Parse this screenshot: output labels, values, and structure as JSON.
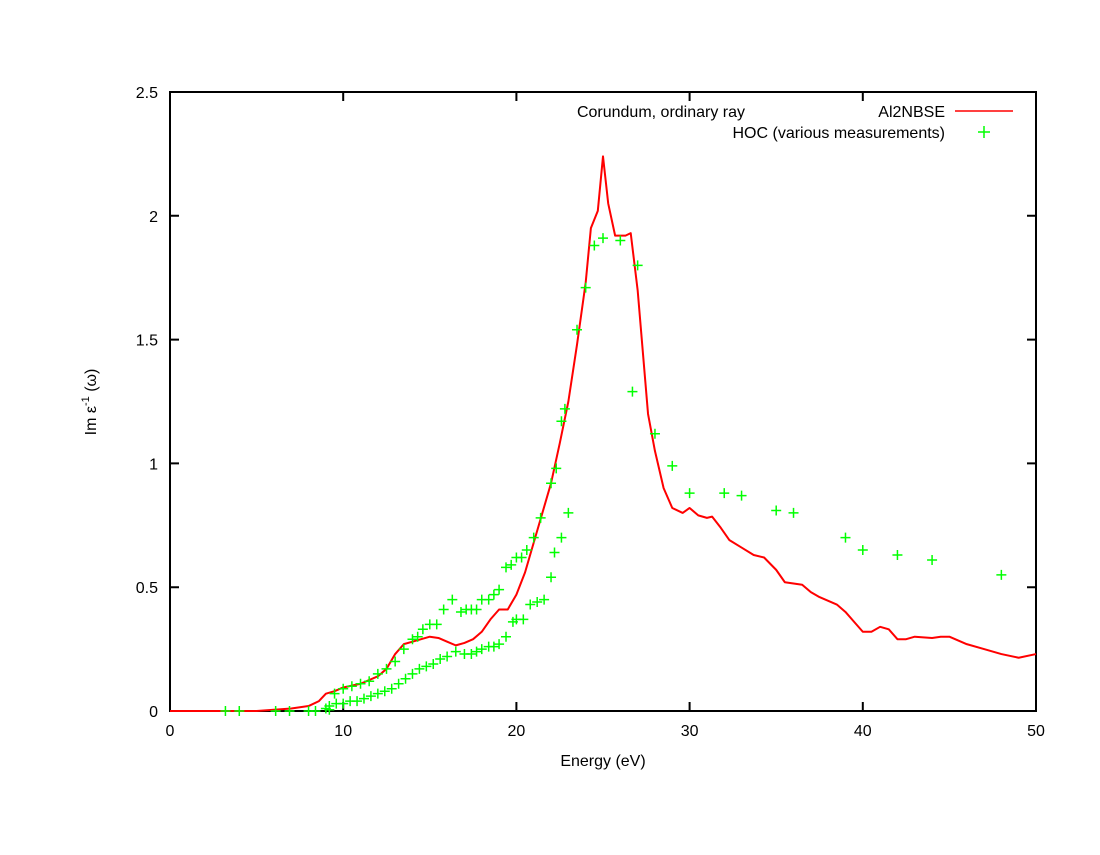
{
  "chart_data": {
    "type": "line",
    "title": "Corundum, ordinary ray",
    "xlabel": "Energy (eV)",
    "ylabel": {
      "base": "Im ε",
      "sup": "-1",
      "suffix": " (ω)"
    },
    "xlim": [
      0,
      50
    ],
    "ylim": [
      0,
      2.5
    ],
    "xticks": [
      0,
      10,
      20,
      30,
      40,
      50
    ],
    "yticks": [
      0,
      0.5,
      1,
      1.5,
      2,
      2.5
    ],
    "ytick_labels": [
      "0",
      "0.5",
      "1",
      "1.5",
      "2",
      "2.5"
    ],
    "grid": false,
    "legend_position": "top-right",
    "series": [
      {
        "name": "Al2NBSE",
        "style": "line",
        "color": "#ff0000",
        "x": [
          0,
          5,
          6,
          7,
          8,
          8.6,
          9,
          9.5,
          10,
          11,
          12,
          12.5,
          13,
          13.5,
          14,
          14.5,
          15,
          15.5,
          16,
          16.5,
          17,
          17.5,
          18,
          18.5,
          19,
          19.5,
          20,
          20.5,
          21,
          21.5,
          22,
          22.5,
          23,
          23.5,
          24,
          24.3,
          24.7,
          25,
          25.3,
          25.7,
          26.3,
          26.6,
          27,
          27.3,
          27.6,
          28,
          28.5,
          29,
          29.6,
          30,
          30.5,
          31,
          31.3,
          31.8,
          32.3,
          33,
          33.7,
          34.3,
          35,
          35.5,
          36,
          36.5,
          37,
          37.5,
          38.5,
          39,
          39.5,
          40,
          40.5,
          41,
          41.5,
          42,
          42.5,
          43,
          44,
          44.5,
          45,
          46,
          47,
          48,
          49,
          50
        ],
        "y": [
          0,
          0,
          0.005,
          0.01,
          0.02,
          0.04,
          0.07,
          0.08,
          0.095,
          0.11,
          0.14,
          0.17,
          0.23,
          0.27,
          0.28,
          0.29,
          0.3,
          0.295,
          0.28,
          0.265,
          0.275,
          0.29,
          0.32,
          0.37,
          0.41,
          0.41,
          0.47,
          0.56,
          0.68,
          0.8,
          0.92,
          1.08,
          1.25,
          1.48,
          1.73,
          1.95,
          2.02,
          2.24,
          2.05,
          1.92,
          1.92,
          1.93,
          1.7,
          1.45,
          1.2,
          1.05,
          0.9,
          0.82,
          0.8,
          0.82,
          0.79,
          0.78,
          0.785,
          0.74,
          0.69,
          0.66,
          0.63,
          0.62,
          0.57,
          0.52,
          0.515,
          0.51,
          0.48,
          0.46,
          0.43,
          0.4,
          0.36,
          0.32,
          0.32,
          0.34,
          0.33,
          0.29,
          0.29,
          0.3,
          0.295,
          0.3,
          0.3,
          0.27,
          0.25,
          0.23,
          0.215,
          0.23
        ]
      },
      {
        "name": "HOC (various measurements)",
        "style": "points",
        "color": "#00ff00",
        "x": [
          3.2,
          4,
          6.1,
          6.9,
          8,
          8.4,
          9,
          9.2,
          9.5,
          10,
          10.5,
          11,
          11.5,
          12,
          12.5,
          13,
          13.5,
          14,
          14.3,
          14.6,
          15,
          15.4,
          15.8,
          16.3,
          16.8,
          17.1,
          17.4,
          17.7,
          18,
          18.4,
          18.7,
          19,
          19.4,
          19.7,
          20,
          20.3,
          20.6,
          21,
          21.4,
          22,
          22.3,
          22.6,
          22.8,
          23.5,
          24,
          24.5,
          25,
          26,
          27,
          26.7,
          28,
          29,
          30,
          32,
          33,
          35,
          36,
          39,
          40,
          42,
          44,
          48,
          9.2,
          9.6,
          10,
          10.4,
          10.8,
          11.2,
          11.6,
          12,
          12.4,
          12.8,
          13.2,
          13.6,
          14,
          14.4,
          14.8,
          15.2,
          15.6,
          16,
          16.5,
          17,
          17.4,
          17.7,
          18,
          18.4,
          18.7,
          19,
          19.4,
          19.8,
          20,
          20.4,
          20.8,
          21.2,
          21.6,
          22,
          22.2,
          22.6,
          23
        ],
        "y": [
          0,
          0,
          0,
          0,
          0,
          0,
          0.01,
          0.005,
          0.07,
          0.09,
          0.1,
          0.11,
          0.12,
          0.15,
          0.17,
          0.2,
          0.25,
          0.29,
          0.3,
          0.33,
          0.35,
          0.35,
          0.41,
          0.45,
          0.4,
          0.41,
          0.41,
          0.41,
          0.45,
          0.45,
          0.47,
          0.49,
          0.58,
          0.59,
          0.62,
          0.62,
          0.65,
          0.7,
          0.78,
          0.92,
          0.98,
          1.17,
          1.22,
          1.54,
          1.71,
          1.88,
          1.91,
          1.9,
          1.8,
          1.29,
          1.12,
          0.99,
          0.88,
          0.88,
          0.87,
          0.81,
          0.8,
          0.7,
          0.65,
          0.63,
          0.61,
          0.55,
          0.02,
          0.03,
          0.03,
          0.04,
          0.04,
          0.05,
          0.06,
          0.07,
          0.08,
          0.09,
          0.11,
          0.13,
          0.15,
          0.17,
          0.18,
          0.19,
          0.21,
          0.22,
          0.24,
          0.23,
          0.23,
          0.24,
          0.25,
          0.26,
          0.26,
          0.27,
          0.3,
          0.36,
          0.37,
          0.37,
          0.43,
          0.44,
          0.45,
          0.54,
          0.64,
          0.7,
          0.8
        ]
      }
    ]
  }
}
